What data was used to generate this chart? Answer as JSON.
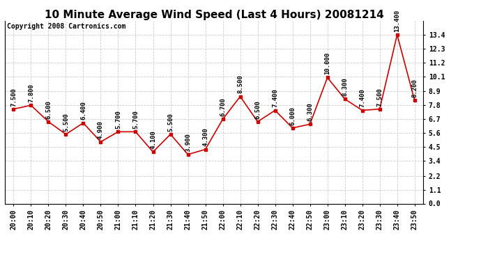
{
  "title": "10 Minute Average Wind Speed (Last 4 Hours) 20081214",
  "copyright": "Copyright 2008 Cartronics.com",
  "times": [
    "20:00",
    "20:10",
    "20:20",
    "20:30",
    "20:40",
    "20:50",
    "21:00",
    "21:10",
    "21:20",
    "21:30",
    "21:40",
    "21:50",
    "22:00",
    "22:10",
    "22:20",
    "22:30",
    "22:40",
    "22:50",
    "23:00",
    "23:10",
    "23:20",
    "23:30",
    "23:40",
    "23:50"
  ],
  "values": [
    7.5,
    7.8,
    6.5,
    5.5,
    6.4,
    4.9,
    5.7,
    5.7,
    4.1,
    5.5,
    3.9,
    4.3,
    6.7,
    8.5,
    6.5,
    7.4,
    6.0,
    6.3,
    10.0,
    8.3,
    7.4,
    7.5,
    13.4,
    8.2
  ],
  "labels": [
    "7.500",
    "7.800",
    "6.500",
    "5.500",
    "6.400",
    "4.900",
    "5.700",
    "5.700",
    "4.100",
    "5.500",
    "3.900",
    "4.300",
    "6.700",
    "8.500",
    "6.500",
    "7.400",
    "6.000",
    "6.300",
    "10.000",
    "8.300",
    "7.400",
    "7.500",
    "13.400",
    "8.200"
  ],
  "line_color": "#cc0000",
  "marker_color": "#cc0000",
  "bg_color": "#ffffff",
  "grid_color": "#cccccc",
  "ylim": [
    0.0,
    14.5
  ],
  "yticks": [
    0.0,
    1.1,
    2.2,
    3.4,
    4.5,
    5.6,
    6.7,
    7.8,
    8.9,
    10.1,
    11.2,
    12.3,
    13.4
  ],
  "title_fontsize": 11,
  "tick_fontsize": 7,
  "label_fontsize": 6.5,
  "copyright_fontsize": 7
}
